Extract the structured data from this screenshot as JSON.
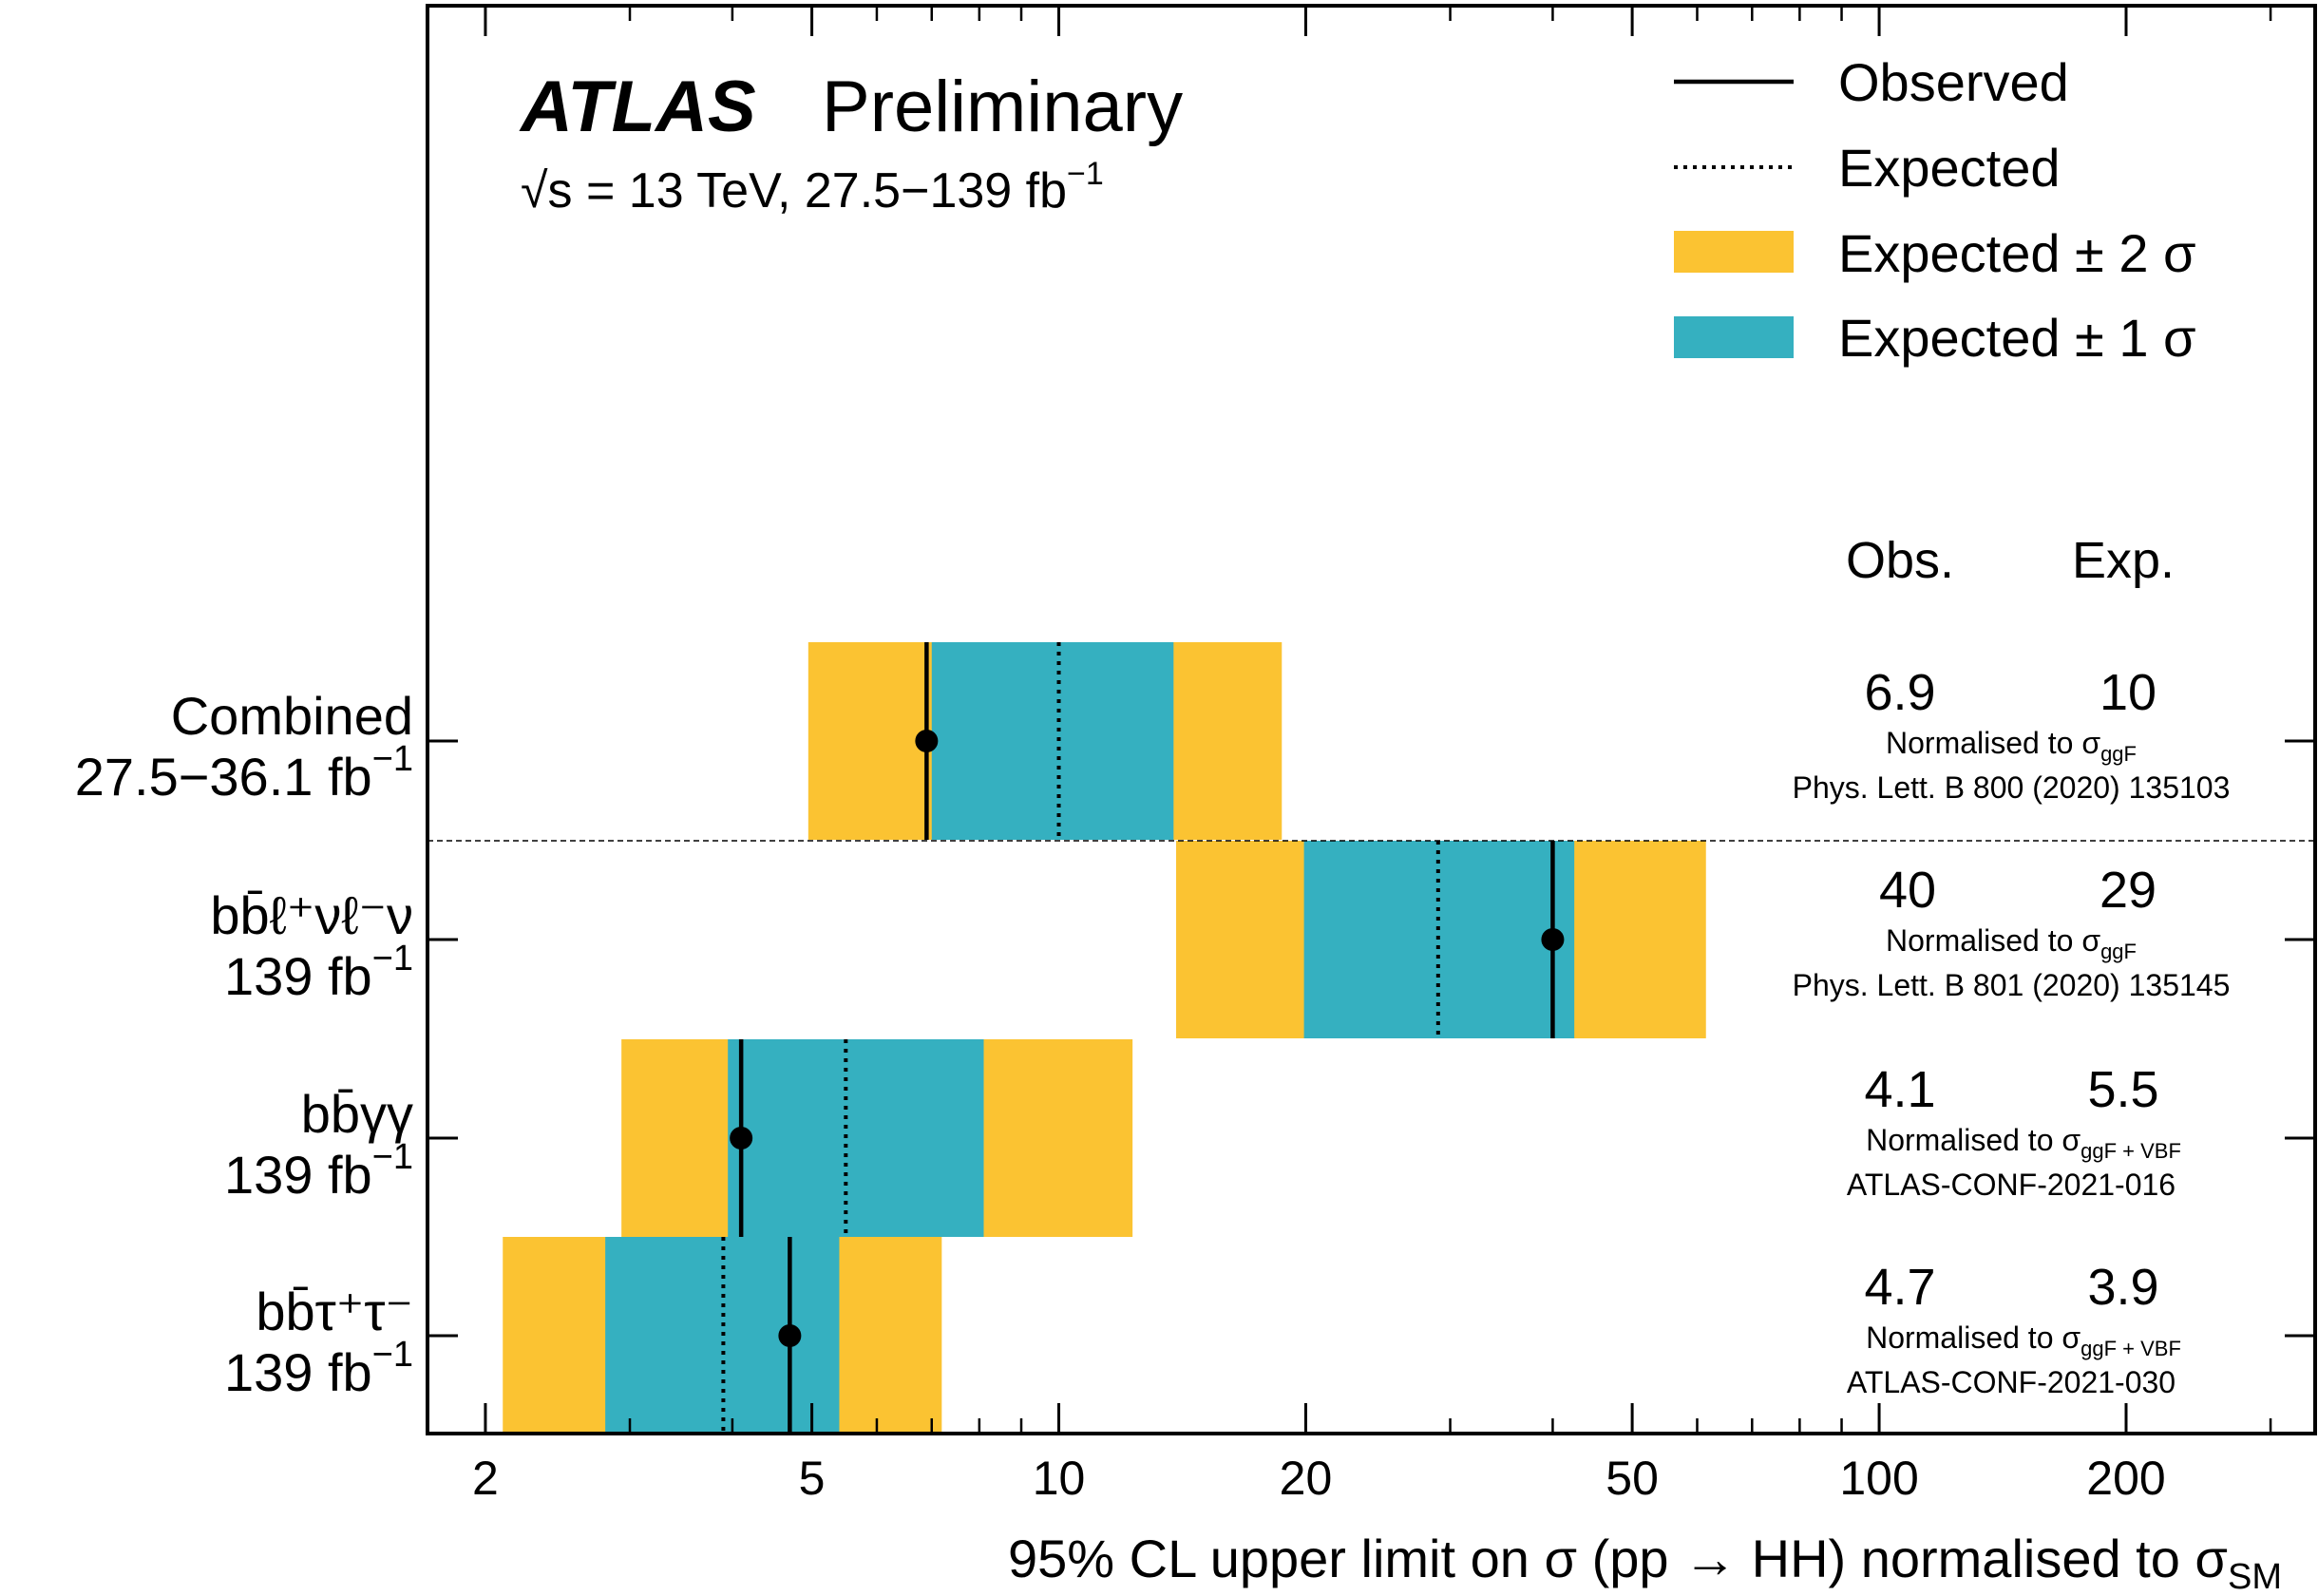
{
  "chart_data": {
    "type": "bar",
    "subtype": "horizontal_limit_bands",
    "x_scale": "log",
    "xlim": [
      1.7,
      340
    ],
    "xticks": [
      2,
      5,
      10,
      20,
      50,
      100,
      200
    ],
    "xtick_labels": [
      "2",
      "5",
      "10",
      "20",
      "50",
      "100",
      "200"
    ],
    "xlabel": "95% CL upper limit on σ (pp → HH) normalised to σ",
    "xlabel_sub": "SM",
    "experiment": "ATLAS",
    "experiment_note": "Preliminary",
    "energy_text": "√s = 13 TeV, 27.5−139 fb",
    "energy_sup": "−1",
    "legend": {
      "position": "top-right",
      "entries": [
        {
          "label": "Observed",
          "style": "solid"
        },
        {
          "label": "Expected",
          "style": "dotted"
        },
        {
          "label": "Expected ± 2 σ",
          "color": "#FBC332"
        },
        {
          "label": "Expected ± 1 σ",
          "color": "#35B0C0"
        }
      ]
    },
    "column_headers": {
      "obs": "Obs.",
      "exp": "Exp."
    },
    "channels": [
      {
        "label": "Combined",
        "sub": "27.5−36.1 fb",
        "sub_sup": "−1",
        "observed": 6.9,
        "expected": 10,
        "band1": [
          7.0,
          13.8
        ],
        "band2": [
          4.95,
          18.7
        ],
        "obs_text": "6.9",
        "exp_text": "10",
        "norm_text": "Normalised to σ",
        "norm_sub": "ggF",
        "ref": "Phys. Lett. B 800 (2020) 135103"
      },
      {
        "label": "bb̄ℓ⁺νℓ⁻ν",
        "sub": "139 fb",
        "sub_sup": "−1",
        "observed": 40,
        "expected": 29,
        "band1": [
          19.9,
          42.5
        ],
        "band2": [
          13.9,
          61.5
        ],
        "obs_text": "40",
        "exp_text": "29",
        "norm_text": "Normalised to σ",
        "norm_sub": "ggF",
        "ref": "Phys. Lett. B 801 (2020) 135145"
      },
      {
        "label": "bb̄γγ",
        "sub": "139 fb",
        "sub_sup": "−1",
        "observed": 4.1,
        "expected": 5.5,
        "band1": [
          3.95,
          8.1
        ],
        "band2": [
          2.93,
          12.3
        ],
        "obs_text": "4.1",
        "exp_text": "5.5",
        "norm_text": "Normalised to σ",
        "norm_sub": "ggF + VBF",
        "ref": "ATLAS-CONF-2021-016"
      },
      {
        "label": "bb̄τ⁺τ⁻",
        "sub": "139 fb",
        "sub_sup": "−1",
        "observed": 4.7,
        "expected": 3.9,
        "band1": [
          2.8,
          5.4
        ],
        "band2": [
          2.1,
          7.2
        ],
        "obs_text": "4.7",
        "exp_text": "3.9",
        "norm_text": "Normalised to σ",
        "norm_sub": "ggF + VBF",
        "ref": "ATLAS-CONF-2021-030"
      }
    ]
  }
}
